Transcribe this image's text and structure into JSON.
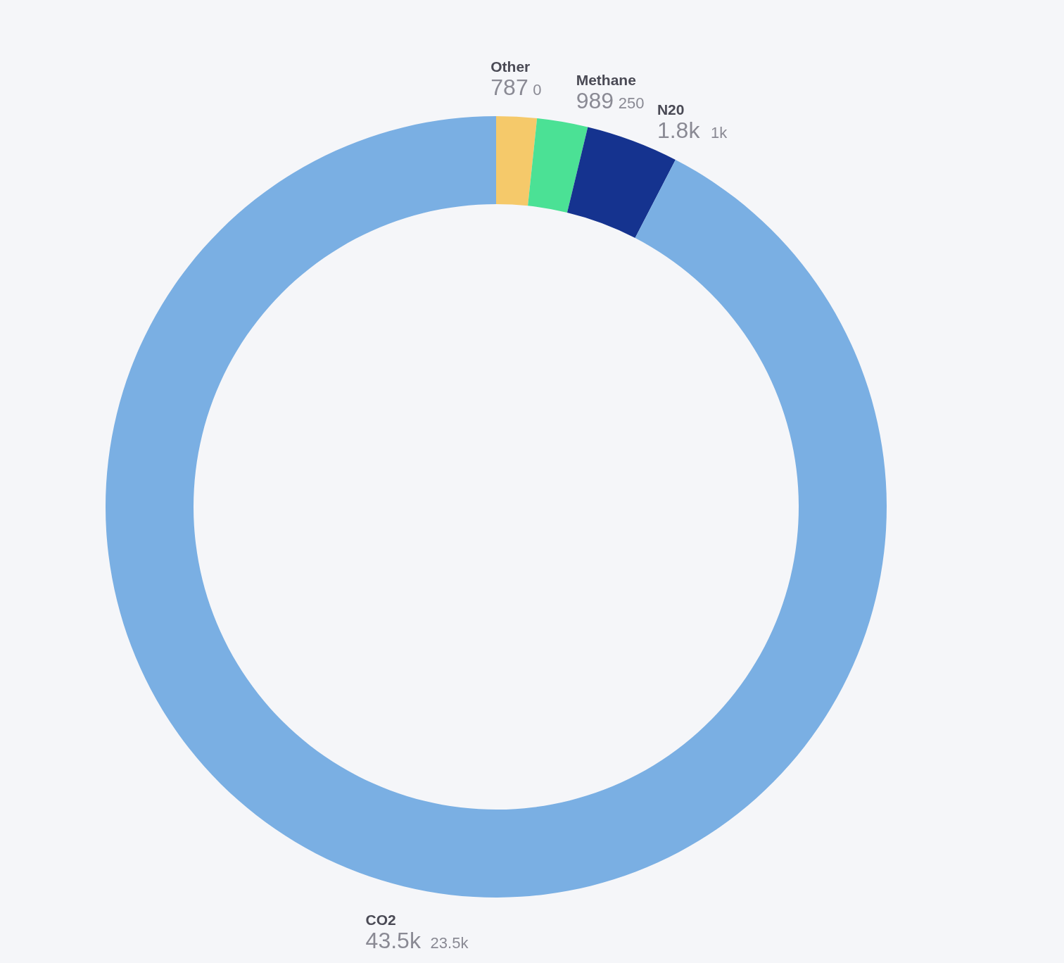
{
  "chart_data": {
    "type": "donut",
    "categories": [
      "Other",
      "Methane",
      "N20",
      "CO2"
    ],
    "values": [
      787,
      989,
      1800,
      43500
    ],
    "colors": [
      "#f5c96a",
      "#4be195",
      "#15338f",
      "#7aafe3"
    ],
    "value_labels": [
      "787",
      "989",
      "1.8k",
      "43.5k"
    ],
    "annotations": [
      "0",
      "250",
      "1k",
      "23.5k"
    ]
  }
}
